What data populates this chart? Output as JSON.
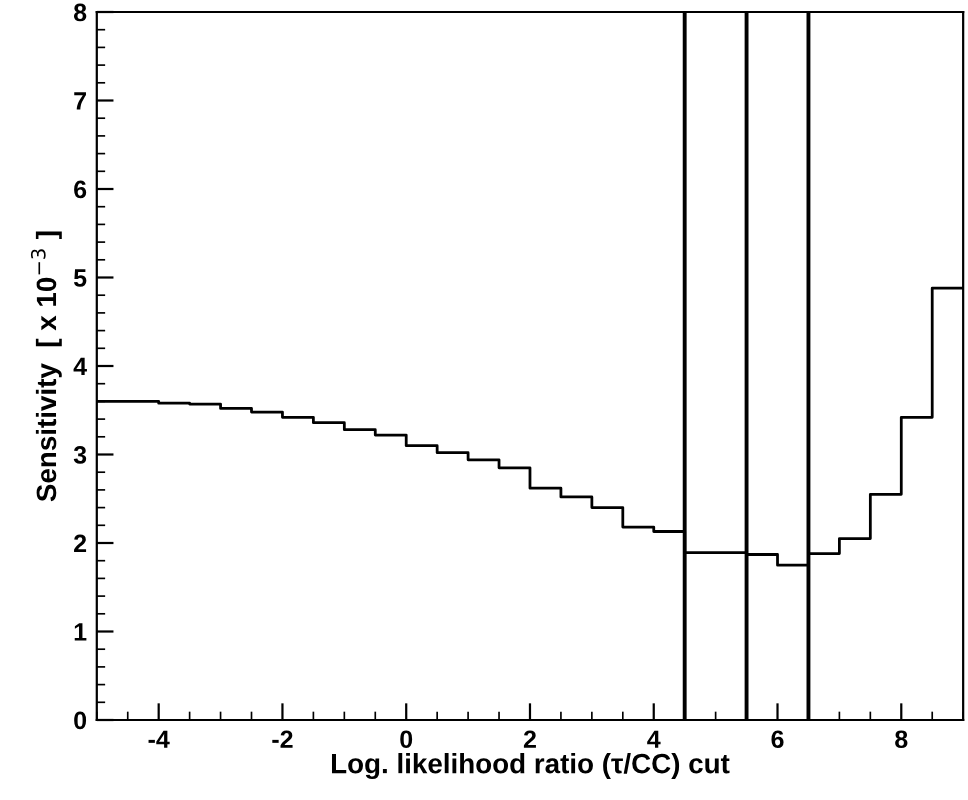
{
  "chart_data": {
    "type": "step",
    "xlabel": "Log. likelihood ratio (τ/CC) cut",
    "ylabel": "Sensitivity  [ x 10$^{−3}$ ]",
    "x": [
      -5,
      -4.5,
      -4,
      -3.5,
      -3,
      -2.5,
      -2,
      -1.5,
      -1,
      -0.5,
      0,
      0.5,
      1,
      1.5,
      2,
      2.5,
      3,
      3.5,
      4,
      4.5,
      5,
      5.5,
      6,
      6.5,
      7,
      7.5,
      8,
      8.5,
      9
    ],
    "values": [
      3.6,
      3.6,
      3.58,
      3.57,
      3.52,
      3.48,
      3.42,
      3.36,
      3.28,
      3.22,
      3.1,
      3.02,
      2.94,
      2.85,
      2.62,
      2.52,
      2.4,
      2.18,
      2.13,
      1.89,
      1.89,
      1.87,
      1.75,
      1.88,
      2.05,
      2.55,
      3.42,
      4.88,
      4.88
    ],
    "color": "#000000",
    "ref_lines": [
      {
        "axis": "x",
        "value": 4.5,
        "color": "#000000"
      },
      {
        "axis": "x",
        "value": 5.5,
        "color": "#000000"
      },
      {
        "axis": "x",
        "value": 6.5,
        "color": "#000000"
      }
    ],
    "xlim": [
      -5,
      9
    ],
    "xticks": [
      -4,
      -2,
      0,
      2,
      4,
      6,
      8
    ],
    "ylim": [
      0,
      8
    ],
    "yticks": [
      0,
      1,
      2,
      3,
      4,
      5,
      6,
      7,
      8
    ],
    "grid": false,
    "legend": false
  }
}
